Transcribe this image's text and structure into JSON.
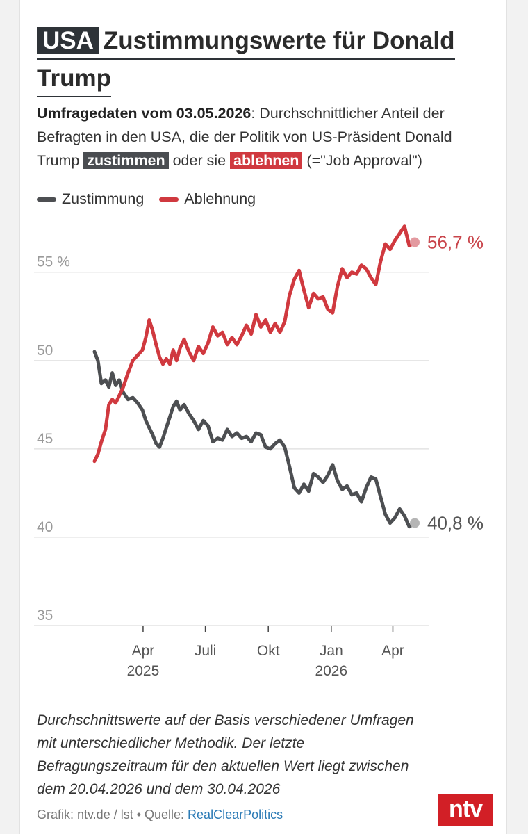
{
  "header": {
    "tag": "USA",
    "title": "Zustimmungswerte für Donald Trump"
  },
  "subtitle": {
    "bold": "Umfragedaten vom 03.05.2026",
    "part1": ": Durchschnittlicher Anteil der Befragten in den USA, die der Politik von US-Präsident Donald Trump ",
    "highlight_approve": "zustimmen",
    "part2": " oder sie ",
    "highlight_disapprove": "ablehnen",
    "part3": " (=\"Job Approval\")"
  },
  "legend": [
    {
      "label": "Zustimmung",
      "color": "#4d4f52"
    },
    {
      "label": "Ablehnung",
      "color": "#d0393f"
    }
  ],
  "chart_data": {
    "type": "line",
    "ylim": [
      35,
      58
    ],
    "y_ticks": [
      {
        "value": 55,
        "label": "55 %"
      },
      {
        "value": 50,
        "label": "50"
      },
      {
        "value": 45,
        "label": "45"
      },
      {
        "value": 40,
        "label": "40"
      },
      {
        "value": 35,
        "label": "35"
      }
    ],
    "xlim": [
      "2025-01-20",
      "2026-05-03"
    ],
    "x_ticks": [
      {
        "date": "2025-04-01",
        "label": "Apr",
        "sublabel": "2025"
      },
      {
        "date": "2025-07-01",
        "label": "Juli",
        "sublabel": ""
      },
      {
        "date": "2025-10-01",
        "label": "Okt",
        "sublabel": ""
      },
      {
        "date": "2026-01-01",
        "label": "Jan",
        "sublabel": "2026"
      },
      {
        "date": "2026-04-01",
        "label": "Apr",
        "sublabel": ""
      }
    ],
    "grid": true,
    "series": [
      {
        "name": "Zustimmung",
        "color": "#4d4f52",
        "end_label": "40,8 %",
        "points": [
          [
            "2025-01-20",
            50.5
          ],
          [
            "2025-01-25",
            50.0
          ],
          [
            "2025-01-30",
            48.7
          ],
          [
            "2025-02-05",
            48.9
          ],
          [
            "2025-02-10",
            48.5
          ],
          [
            "2025-02-15",
            49.3
          ],
          [
            "2025-02-20",
            48.6
          ],
          [
            "2025-02-25",
            48.9
          ],
          [
            "2025-03-03",
            48.2
          ],
          [
            "2025-03-10",
            47.8
          ],
          [
            "2025-03-17",
            47.9
          ],
          [
            "2025-03-24",
            47.6
          ],
          [
            "2025-03-31",
            47.2
          ],
          [
            "2025-04-05",
            46.6
          ],
          [
            "2025-04-10",
            46.2
          ],
          [
            "2025-04-15",
            45.8
          ],
          [
            "2025-04-20",
            45.3
          ],
          [
            "2025-04-25",
            45.1
          ],
          [
            "2025-04-30",
            45.6
          ],
          [
            "2025-05-05",
            46.2
          ],
          [
            "2025-05-10",
            46.8
          ],
          [
            "2025-05-15",
            47.4
          ],
          [
            "2025-05-20",
            47.7
          ],
          [
            "2025-05-25",
            47.2
          ],
          [
            "2025-05-31",
            47.5
          ],
          [
            "2025-06-07",
            47.0
          ],
          [
            "2025-06-14",
            46.6
          ],
          [
            "2025-06-21",
            46.1
          ],
          [
            "2025-06-28",
            46.6
          ],
          [
            "2025-07-05",
            46.3
          ],
          [
            "2025-07-12",
            45.4
          ],
          [
            "2025-07-19",
            45.6
          ],
          [
            "2025-07-26",
            45.5
          ],
          [
            "2025-08-02",
            46.1
          ],
          [
            "2025-08-09",
            45.7
          ],
          [
            "2025-08-16",
            45.9
          ],
          [
            "2025-08-23",
            45.6
          ],
          [
            "2025-08-30",
            45.7
          ],
          [
            "2025-09-06",
            45.4
          ],
          [
            "2025-09-13",
            45.9
          ],
          [
            "2025-09-20",
            45.8
          ],
          [
            "2025-09-27",
            45.1
          ],
          [
            "2025-10-04",
            45.0
          ],
          [
            "2025-10-11",
            45.3
          ],
          [
            "2025-10-18",
            45.5
          ],
          [
            "2025-10-25",
            45.1
          ],
          [
            "2025-11-01",
            44.0
          ],
          [
            "2025-11-08",
            42.8
          ],
          [
            "2025-11-15",
            42.5
          ],
          [
            "2025-11-22",
            43.0
          ],
          [
            "2025-11-29",
            42.6
          ],
          [
            "2025-12-06",
            43.6
          ],
          [
            "2025-12-13",
            43.4
          ],
          [
            "2025-12-20",
            43.1
          ],
          [
            "2025-12-27",
            43.5
          ],
          [
            "2026-01-03",
            44.1
          ],
          [
            "2026-01-10",
            43.2
          ],
          [
            "2026-01-17",
            42.7
          ],
          [
            "2026-01-24",
            42.9
          ],
          [
            "2026-01-31",
            42.4
          ],
          [
            "2026-02-07",
            42.5
          ],
          [
            "2026-02-14",
            42.0
          ],
          [
            "2026-02-21",
            42.8
          ],
          [
            "2026-02-28",
            43.4
          ],
          [
            "2026-03-07",
            43.3
          ],
          [
            "2026-03-14",
            42.3
          ],
          [
            "2026-03-21",
            41.3
          ],
          [
            "2026-03-28",
            40.8
          ],
          [
            "2026-04-04",
            41.1
          ],
          [
            "2026-04-11",
            41.6
          ],
          [
            "2026-04-18",
            41.2
          ],
          [
            "2026-04-25",
            40.6
          ],
          [
            "2026-05-03",
            40.8
          ]
        ]
      },
      {
        "name": "Ablehnung",
        "color": "#d0393f",
        "end_label": "56,7 %",
        "points": [
          [
            "2025-01-20",
            44.3
          ],
          [
            "2025-01-25",
            44.7
          ],
          [
            "2025-01-30",
            45.4
          ],
          [
            "2025-02-05",
            46.1
          ],
          [
            "2025-02-10",
            47.5
          ],
          [
            "2025-02-15",
            47.8
          ],
          [
            "2025-02-20",
            47.6
          ],
          [
            "2025-02-25",
            48.0
          ],
          [
            "2025-03-03",
            48.5
          ],
          [
            "2025-03-10",
            49.3
          ],
          [
            "2025-03-17",
            50.0
          ],
          [
            "2025-03-24",
            50.3
          ],
          [
            "2025-03-31",
            50.6
          ],
          [
            "2025-04-05",
            51.3
          ],
          [
            "2025-04-10",
            52.3
          ],
          [
            "2025-04-15",
            51.7
          ],
          [
            "2025-04-20",
            50.9
          ],
          [
            "2025-04-25",
            50.2
          ],
          [
            "2025-04-30",
            49.8
          ],
          [
            "2025-05-05",
            50.1
          ],
          [
            "2025-05-10",
            49.8
          ],
          [
            "2025-05-15",
            50.6
          ],
          [
            "2025-05-20",
            50.0
          ],
          [
            "2025-05-25",
            50.7
          ],
          [
            "2025-05-31",
            51.2
          ],
          [
            "2025-06-07",
            50.5
          ],
          [
            "2025-06-14",
            50.0
          ],
          [
            "2025-06-21",
            50.8
          ],
          [
            "2025-06-28",
            50.4
          ],
          [
            "2025-07-05",
            51.0
          ],
          [
            "2025-07-12",
            51.9
          ],
          [
            "2025-07-19",
            51.4
          ],
          [
            "2025-07-26",
            51.6
          ],
          [
            "2025-08-02",
            50.9
          ],
          [
            "2025-08-09",
            51.3
          ],
          [
            "2025-08-16",
            50.9
          ],
          [
            "2025-08-23",
            51.4
          ],
          [
            "2025-08-30",
            52.0
          ],
          [
            "2025-09-06",
            51.5
          ],
          [
            "2025-09-13",
            52.6
          ],
          [
            "2025-09-20",
            51.9
          ],
          [
            "2025-09-27",
            52.3
          ],
          [
            "2025-10-04",
            51.6
          ],
          [
            "2025-10-11",
            52.1
          ],
          [
            "2025-10-18",
            51.6
          ],
          [
            "2025-10-25",
            52.2
          ],
          [
            "2025-11-01",
            53.7
          ],
          [
            "2025-11-08",
            54.6
          ],
          [
            "2025-11-15",
            55.1
          ],
          [
            "2025-11-22",
            54.0
          ],
          [
            "2025-11-29",
            53.0
          ],
          [
            "2025-12-06",
            53.8
          ],
          [
            "2025-12-13",
            53.5
          ],
          [
            "2025-12-20",
            53.6
          ],
          [
            "2025-12-27",
            52.9
          ],
          [
            "2026-01-03",
            52.7
          ],
          [
            "2026-01-10",
            54.2
          ],
          [
            "2026-01-17",
            55.2
          ],
          [
            "2026-01-24",
            54.7
          ],
          [
            "2026-01-31",
            55.0
          ],
          [
            "2026-02-07",
            54.9
          ],
          [
            "2026-02-14",
            55.4
          ],
          [
            "2026-02-21",
            55.2
          ],
          [
            "2026-02-28",
            54.7
          ],
          [
            "2026-03-07",
            54.3
          ],
          [
            "2026-03-14",
            55.6
          ],
          [
            "2026-03-21",
            56.6
          ],
          [
            "2026-03-28",
            56.3
          ],
          [
            "2026-04-04",
            56.8
          ],
          [
            "2026-04-11",
            57.2
          ],
          [
            "2026-04-18",
            57.6
          ],
          [
            "2026-04-25",
            56.5
          ],
          [
            "2026-05-03",
            56.7
          ]
        ]
      }
    ]
  },
  "footnote": "Durchschnittswerte auf der Basis verschiedener Umfragen mit unterschiedlicher Methodik. Der letzte Befragungszeitraum für den aktuellen Wert liegt zwischen dem 20.04.2026 und dem 30.04.2026",
  "source": {
    "prefix": "Grafik: ntv.de / lst • Quelle: ",
    "link": "RealClearPolitics"
  },
  "logo": "ntv"
}
